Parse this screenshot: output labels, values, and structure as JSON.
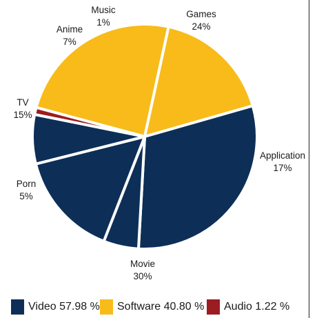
{
  "chart_data": {
    "type": "pie",
    "slices": [
      {
        "label": "Games",
        "percent_label": "24%",
        "value": 24,
        "color": "#f8bb19"
      },
      {
        "label": "Application",
        "percent_label": "17%",
        "value": 17,
        "color": "#f8bb19"
      },
      {
        "label": "Movie",
        "percent_label": "30%",
        "value": 30,
        "color": "#0d2f57"
      },
      {
        "label": "Porn",
        "percent_label": "5%",
        "value": 5,
        "color": "#0d2f57"
      },
      {
        "label": "TV",
        "percent_label": "15%",
        "value": 15,
        "color": "#0d2f57"
      },
      {
        "label": "Anime",
        "percent_label": "7%",
        "value": 7,
        "color": "#0d2f57"
      },
      {
        "label": "Music",
        "percent_label": "1%",
        "value": 1,
        "color": "#9b1c21"
      }
    ],
    "legend": [
      {
        "label": "Video 57.98 %",
        "color": "#0d2f57"
      },
      {
        "label": "Software 40.80 %",
        "color": "#f8bb19"
      },
      {
        "label": "Audio 1.22 %",
        "color": "#9b1c21"
      }
    ],
    "legend_placement": "bottom"
  }
}
